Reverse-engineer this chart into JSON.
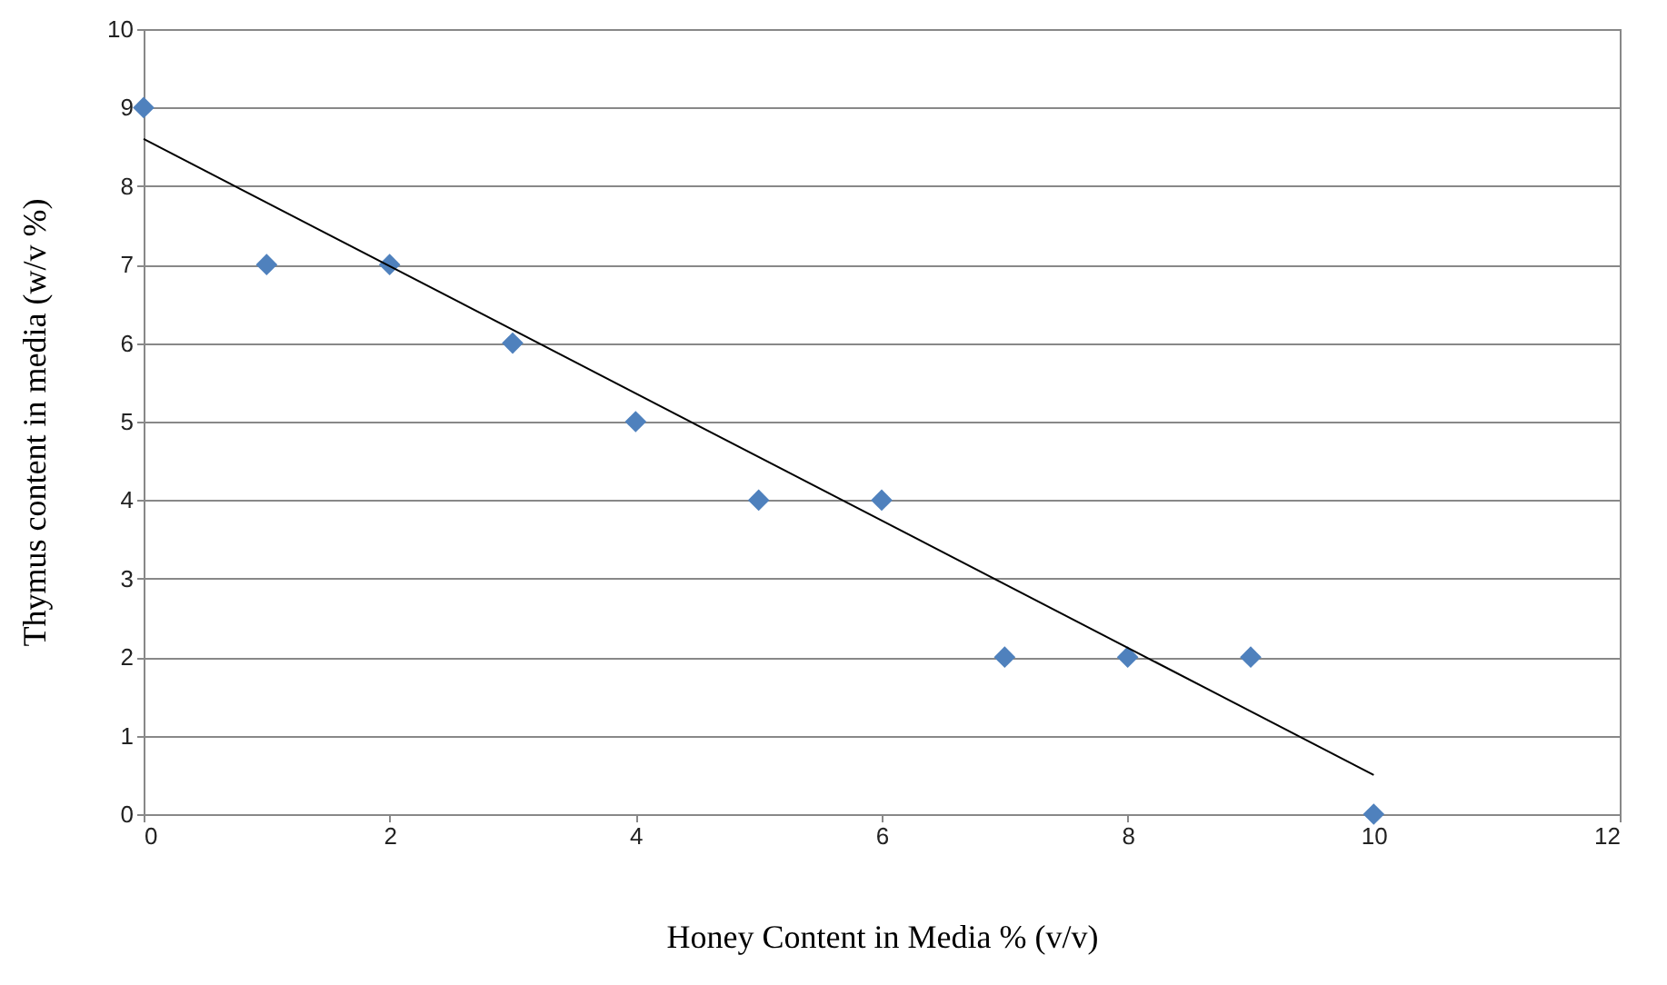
{
  "chart_data": {
    "type": "scatter",
    "xlabel": "Honey Content in Media % (v/v)",
    "ylabel": "Thymus content in media (w/v %)",
    "xlim": [
      0,
      12
    ],
    "xticks": [
      0,
      2,
      4,
      6,
      8,
      10,
      12
    ],
    "ylim": [
      0,
      10
    ],
    "yticks": [
      0,
      1,
      2,
      3,
      4,
      5,
      6,
      7,
      8,
      9,
      10
    ],
    "grid": "y",
    "marker": "diamond",
    "series": [
      {
        "color": "#4f81bd",
        "x": [
          0,
          1,
          2,
          3,
          4,
          5,
          6,
          7,
          8,
          9,
          10
        ],
        "values": [
          9,
          7,
          7,
          6,
          5,
          4,
          4,
          2,
          2,
          2,
          0
        ]
      },
      {
        "type": "line",
        "marker": "none",
        "color": "#000000",
        "x": [
          0,
          10
        ],
        "values": [
          8.6,
          0.5
        ]
      }
    ]
  }
}
